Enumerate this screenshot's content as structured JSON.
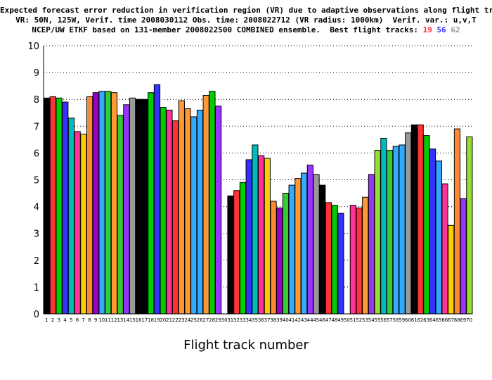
{
  "chart_data": {
    "type": "bar",
    "title_lines": [
      "Expected forecast error reduction in verification region (VR) due to adaptive observations along flight tracks.",
      "VR: 50N, 125W, Verif. time 2008030112 Obs. time: 2008022712 (VR radius: 1000km)  Verif. var.: u,v,T",
      "NCEP/UW ETKF based on 131-member 2008022500 COMBINED ensemble.  Best flight tracks:"
    ],
    "best_tracks": [
      {
        "label": "19",
        "color": "#ff3333"
      },
      {
        "label": "56",
        "color": "#3333ff"
      },
      {
        "label": "62",
        "color": "#999999"
      }
    ],
    "xlabel": "Flight track number",
    "ylabel": "",
    "ylim": [
      0,
      10
    ],
    "yticks": [
      "0",
      "1",
      "2",
      "3",
      "4",
      "5",
      "6",
      "7",
      "8",
      "9",
      "10"
    ],
    "categories": [
      "1",
      "2",
      "3",
      "4",
      "5",
      "6",
      "7",
      "8",
      "9",
      "10",
      "11",
      "12",
      "13",
      "14",
      "15",
      "16",
      "17",
      "18",
      "19",
      "20",
      "21",
      "22",
      "23",
      "24",
      "25",
      "26",
      "27",
      "28",
      "29",
      "30",
      "31",
      "32",
      "33",
      "34",
      "35",
      "36",
      "37",
      "38",
      "39",
      "40",
      "41",
      "42",
      "43",
      "44",
      "45",
      "46",
      "47",
      "48",
      "49",
      "50",
      "51",
      "52",
      "53",
      "54",
      "55",
      "56",
      "57",
      "58",
      "59",
      "60",
      "61",
      "62",
      "63",
      "64",
      "65",
      "66",
      "67",
      "68",
      "69",
      "70"
    ],
    "values": [
      8.05,
      8.1,
      8.05,
      7.9,
      7.3,
      6.8,
      6.7,
      8.1,
      8.25,
      8.3,
      8.3,
      8.25,
      7.4,
      7.8,
      8.05,
      8.0,
      8.0,
      8.25,
      8.55,
      7.7,
      7.6,
      7.2,
      7.95,
      7.65,
      7.35,
      7.6,
      8.15,
      8.3,
      7.75,
      null,
      4.4,
      4.6,
      4.9,
      5.75,
      6.3,
      5.9,
      5.8,
      4.2,
      3.95,
      4.5,
      4.8,
      5.05,
      5.25,
      5.55,
      5.2,
      4.8,
      4.15,
      4.05,
      3.75,
      null,
      4.05,
      3.95,
      4.35,
      5.2,
      6.1,
      6.55,
      6.1,
      6.25,
      6.3,
      6.75,
      7.05,
      7.05,
      6.65,
      6.15,
      5.7,
      4.85,
      3.3,
      6.9,
      4.3,
      6.6
    ],
    "colors": [
      "#000000",
      "#ff3333",
      "#00cc00",
      "#3333ff",
      "#00bbbb",
      "#ff3399",
      "#ffcc00",
      "#ff8833",
      "#9900cc",
      "#33aaff",
      "#33cc33",
      "#ff9933",
      "#33cc33",
      "#9933ff",
      "#999999",
      "#000000",
      "#000000",
      "#00cc00",
      "#3333ff",
      "#00cc00",
      "#ff3399",
      "#ff3333",
      "#ff9933",
      "#ff9933",
      "#33aaff",
      "#33aaff",
      "#ff9933",
      "#00cc00",
      "#9933ff",
      null,
      "#000000",
      "#ff3333",
      "#00cc00",
      "#3333ff",
      "#00bbbb",
      "#ff3399",
      "#ffcc00",
      "#ff8833",
      "#9900cc",
      "#33cc33",
      "#33aaff",
      "#ff9933",
      "#33aaff",
      "#9933ff",
      "#999999",
      "#000000",
      "#ff3333",
      "#00cc00",
      "#3333ff",
      null,
      "#ff3399",
      "#ff3333",
      "#ff9933",
      "#9933ff",
      "#99dd33",
      "#00bbbb",
      "#33cc33",
      "#33aaff",
      "#33aaff",
      "#999999",
      "#000000",
      "#ff3333",
      "#00cc00",
      "#3333ff",
      "#33aaff",
      "#ff3399",
      "#ffcc00",
      "#ff8833",
      "#9933ff",
      "#99dd33"
    ],
    "grid": true,
    "legend": "none"
  }
}
